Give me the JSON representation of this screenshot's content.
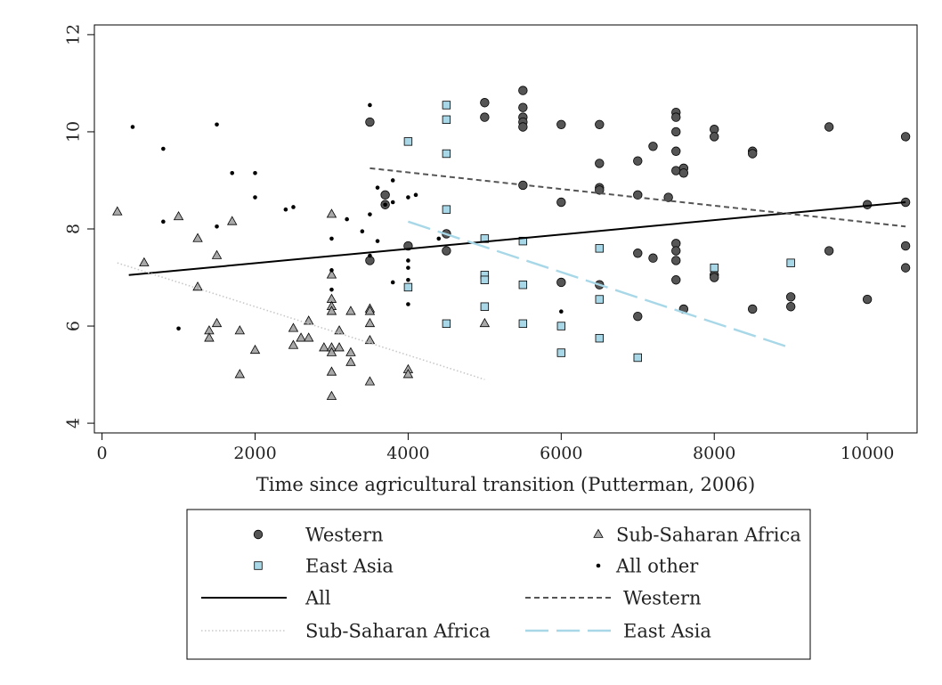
{
  "chart_data": {
    "type": "scatter",
    "title": "",
    "xlabel": "Time since agricultural transition (Putterman, 2006)",
    "ylabel": "",
    "xlim": [
      -100,
      10650
    ],
    "ylim": [
      3.8,
      12.2
    ],
    "x_ticks": [
      0,
      2000,
      4000,
      6000,
      8000,
      10000
    ],
    "x_tick_labels": [
      "0",
      "2000",
      "4000",
      "6000",
      "8000",
      "10000"
    ],
    "y_ticks": [
      4,
      6,
      8,
      10,
      12
    ],
    "y_tick_labels": [
      "4",
      "6",
      "8",
      "10",
      "12"
    ],
    "grid": false,
    "legend_position": "bottom",
    "series": [
      {
        "name": "Western",
        "kind": "points",
        "marker": "circle",
        "color": "#555555",
        "points": [
          [
            3500,
            10.2
          ],
          [
            3500,
            7.35
          ],
          [
            3700,
            8.7
          ],
          [
            3700,
            8.5
          ],
          [
            4000,
            7.65
          ],
          [
            4500,
            7.9
          ],
          [
            4500,
            7.55
          ],
          [
            5000,
            10.6
          ],
          [
            5000,
            10.3
          ],
          [
            5500,
            10.85
          ],
          [
            5500,
            10.5
          ],
          [
            5500,
            10.3
          ],
          [
            5500,
            10.2
          ],
          [
            5500,
            10.1
          ],
          [
            5500,
            8.9
          ],
          [
            6000,
            10.15
          ],
          [
            6000,
            8.55
          ],
          [
            6000,
            6.9
          ],
          [
            6500,
            10.15
          ],
          [
            6500,
            9.35
          ],
          [
            6500,
            8.85
          ],
          [
            6500,
            8.8
          ],
          [
            6500,
            6.85
          ],
          [
            7000,
            9.4
          ],
          [
            7000,
            8.7
          ],
          [
            7000,
            7.5
          ],
          [
            7000,
            6.2
          ],
          [
            7200,
            9.7
          ],
          [
            7200,
            7.4
          ],
          [
            7400,
            8.65
          ],
          [
            7500,
            10.4
          ],
          [
            7500,
            10.3
          ],
          [
            7500,
            10.0
          ],
          [
            7500,
            9.6
          ],
          [
            7500,
            9.2
          ],
          [
            7500,
            7.7
          ],
          [
            7500,
            7.55
          ],
          [
            7500,
            7.35
          ],
          [
            7500,
            6.95
          ],
          [
            7600,
            9.25
          ],
          [
            7600,
            9.15
          ],
          [
            7600,
            6.35
          ],
          [
            8000,
            10.05
          ],
          [
            8000,
            9.9
          ],
          [
            8000,
            7.05
          ],
          [
            8000,
            7.0
          ],
          [
            8500,
            9.6
          ],
          [
            8500,
            9.55
          ],
          [
            8500,
            6.35
          ],
          [
            9000,
            6.6
          ],
          [
            9000,
            6.4
          ],
          [
            9500,
            10.1
          ],
          [
            9500,
            7.55
          ],
          [
            10000,
            8.5
          ],
          [
            10000,
            6.55
          ],
          [
            10500,
            9.9
          ],
          [
            10500,
            8.55
          ],
          [
            10500,
            7.65
          ],
          [
            10500,
            7.2
          ]
        ]
      },
      {
        "name": "Sub-Saharan Africa",
        "kind": "points",
        "marker": "triangle",
        "color": "#a9a9a9",
        "points": [
          [
            200,
            8.35
          ],
          [
            550,
            7.3
          ],
          [
            1000,
            8.25
          ],
          [
            1250,
            7.8
          ],
          [
            1250,
            6.8
          ],
          [
            1400,
            5.9
          ],
          [
            1400,
            5.75
          ],
          [
            1500,
            7.45
          ],
          [
            1500,
            6.05
          ],
          [
            1700,
            8.15
          ],
          [
            1800,
            5.9
          ],
          [
            1800,
            5.0
          ],
          [
            2000,
            5.5
          ],
          [
            2500,
            5.95
          ],
          [
            2500,
            5.6
          ],
          [
            2600,
            5.75
          ],
          [
            2700,
            6.1
          ],
          [
            2700,
            5.75
          ],
          [
            2900,
            5.55
          ],
          [
            3000,
            8.3
          ],
          [
            3000,
            7.05
          ],
          [
            3000,
            6.55
          ],
          [
            3000,
            6.4
          ],
          [
            3000,
            6.3
          ],
          [
            3000,
            5.55
          ],
          [
            3000,
            5.45
          ],
          [
            3000,
            5.05
          ],
          [
            3000,
            4.55
          ],
          [
            3100,
            5.9
          ],
          [
            3100,
            5.55
          ],
          [
            3250,
            6.3
          ],
          [
            3250,
            5.45
          ],
          [
            3250,
            5.25
          ],
          [
            3500,
            6.35
          ],
          [
            3500,
            6.3
          ],
          [
            3500,
            6.05
          ],
          [
            3500,
            5.7
          ],
          [
            3500,
            4.85
          ],
          [
            4000,
            5.1
          ],
          [
            4000,
            5.0
          ],
          [
            5000,
            6.05
          ]
        ]
      },
      {
        "name": "East Asia",
        "kind": "points",
        "marker": "square",
        "color": "#a8d8e8",
        "points": [
          [
            4000,
            9.8
          ],
          [
            4000,
            6.8
          ],
          [
            4500,
            10.55
          ],
          [
            4500,
            10.25
          ],
          [
            4500,
            9.55
          ],
          [
            4500,
            8.4
          ],
          [
            4500,
            6.05
          ],
          [
            5000,
            7.8
          ],
          [
            5000,
            7.05
          ],
          [
            5000,
            6.95
          ],
          [
            5000,
            6.4
          ],
          [
            5500,
            7.75
          ],
          [
            5500,
            6.85
          ],
          [
            5500,
            6.05
          ],
          [
            6000,
            6.0
          ],
          [
            6000,
            5.45
          ],
          [
            6500,
            7.6
          ],
          [
            6500,
            6.55
          ],
          [
            6500,
            5.75
          ],
          [
            7000,
            5.35
          ],
          [
            8000,
            7.2
          ],
          [
            9000,
            7.3
          ]
        ]
      },
      {
        "name": "All other",
        "kind": "points",
        "marker": "dot",
        "color": "#000000",
        "points": [
          [
            400,
            10.1
          ],
          [
            800,
            9.65
          ],
          [
            800,
            8.15
          ],
          [
            1000,
            5.95
          ],
          [
            1500,
            10.15
          ],
          [
            1500,
            8.05
          ],
          [
            1700,
            9.15
          ],
          [
            2000,
            9.15
          ],
          [
            2000,
            8.65
          ],
          [
            2400,
            8.4
          ],
          [
            2500,
            8.45
          ],
          [
            3000,
            7.8
          ],
          [
            3000,
            7.15
          ],
          [
            3000,
            6.75
          ],
          [
            3200,
            8.2
          ],
          [
            3400,
            7.95
          ],
          [
            3500,
            10.55
          ],
          [
            3500,
            8.3
          ],
          [
            3500,
            7.45
          ],
          [
            3600,
            8.85
          ],
          [
            3600,
            7.75
          ],
          [
            3700,
            8.5
          ],
          [
            3800,
            9.0
          ],
          [
            3800,
            8.55
          ],
          [
            3800,
            6.9
          ],
          [
            4000,
            8.65
          ],
          [
            4000,
            7.35
          ],
          [
            4000,
            7.2
          ],
          [
            4000,
            6.95
          ],
          [
            4000,
            6.45
          ],
          [
            4100,
            8.7
          ],
          [
            4400,
            7.8
          ],
          [
            6000,
            6.3
          ]
        ]
      },
      {
        "name": "All",
        "kind": "line",
        "dash": "solid",
        "color": "#000000",
        "points": [
          [
            350,
            7.05
          ],
          [
            10500,
            8.55
          ]
        ]
      },
      {
        "name": "Western",
        "kind": "line",
        "dash": "short-dash",
        "color": "#555555",
        "points": [
          [
            3500,
            9.25
          ],
          [
            10500,
            8.05
          ]
        ]
      },
      {
        "name": "Sub-Saharan Africa",
        "kind": "line",
        "dash": "dotted",
        "color": "#c8c8c8",
        "points": [
          [
            200,
            7.3
          ],
          [
            5000,
            4.9
          ]
        ]
      },
      {
        "name": "East Asia",
        "kind": "line",
        "dash": "long-dash",
        "color": "#a8d8e8",
        "points": [
          [
            4000,
            8.15
          ],
          [
            9000,
            5.55
          ]
        ]
      }
    ],
    "legend": [
      {
        "label": "Western",
        "kind": "points",
        "marker": "circle",
        "color": "#555555"
      },
      {
        "label": "Sub-Saharan Africa",
        "kind": "points",
        "marker": "triangle",
        "color": "#a9a9a9"
      },
      {
        "label": "East Asia",
        "kind": "points",
        "marker": "square",
        "color": "#a8d8e8"
      },
      {
        "label": "All other",
        "kind": "points",
        "marker": "dot",
        "color": "#000000"
      },
      {
        "label": "All",
        "kind": "line",
        "dash": "solid",
        "color": "#000000"
      },
      {
        "label": "Western",
        "kind": "line",
        "dash": "short-dash",
        "color": "#555555"
      },
      {
        "label": "Sub-Saharan Africa",
        "kind": "line",
        "dash": "dotted",
        "color": "#c8c8c8"
      },
      {
        "label": "East Asia",
        "kind": "line",
        "dash": "long-dash",
        "color": "#a8d8e8"
      }
    ]
  }
}
